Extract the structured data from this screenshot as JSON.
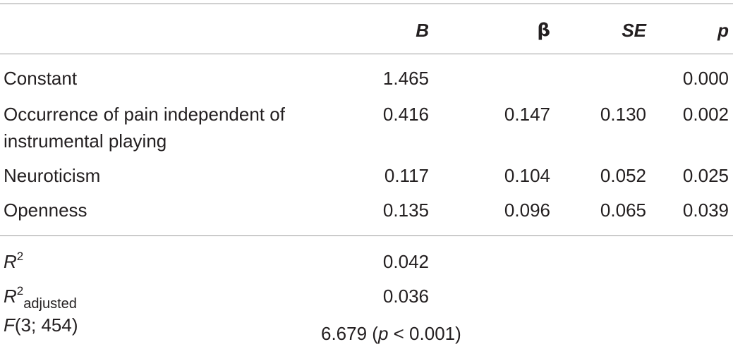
{
  "table": {
    "headers": {
      "label": "",
      "B": "B",
      "beta": "β",
      "SE": "SE",
      "p": "p"
    },
    "rows": [
      {
        "label": "Constant",
        "B": "1.465",
        "beta": "",
        "SE": "",
        "p": "0.000"
      },
      {
        "label_line1": "Occurrence of pain independent of",
        "label_line2": "instrumental playing",
        "B": "0.416",
        "beta": "0.147",
        "SE": "0.130",
        "p": "0.002"
      },
      {
        "label": "Neuroticism",
        "B": "0.117",
        "beta": "0.104",
        "SE": "0.052",
        "p": "0.025"
      },
      {
        "label": "Openness",
        "B": "0.135",
        "beta": "0.096",
        "SE": "0.065",
        "p": "0.039"
      }
    ],
    "summary": {
      "r2": {
        "symbol": "R",
        "sup": "2",
        "value": "0.042"
      },
      "r2_adjusted": {
        "symbol": "R",
        "sup": "2",
        "sub": "adjusted",
        "value": "0.036"
      },
      "f": {
        "symbol": "F",
        "args": "(3; 454)",
        "value_prefix": "6.679 (",
        "value_p": "p",
        "value_suffix": " < 0.001)"
      }
    }
  }
}
